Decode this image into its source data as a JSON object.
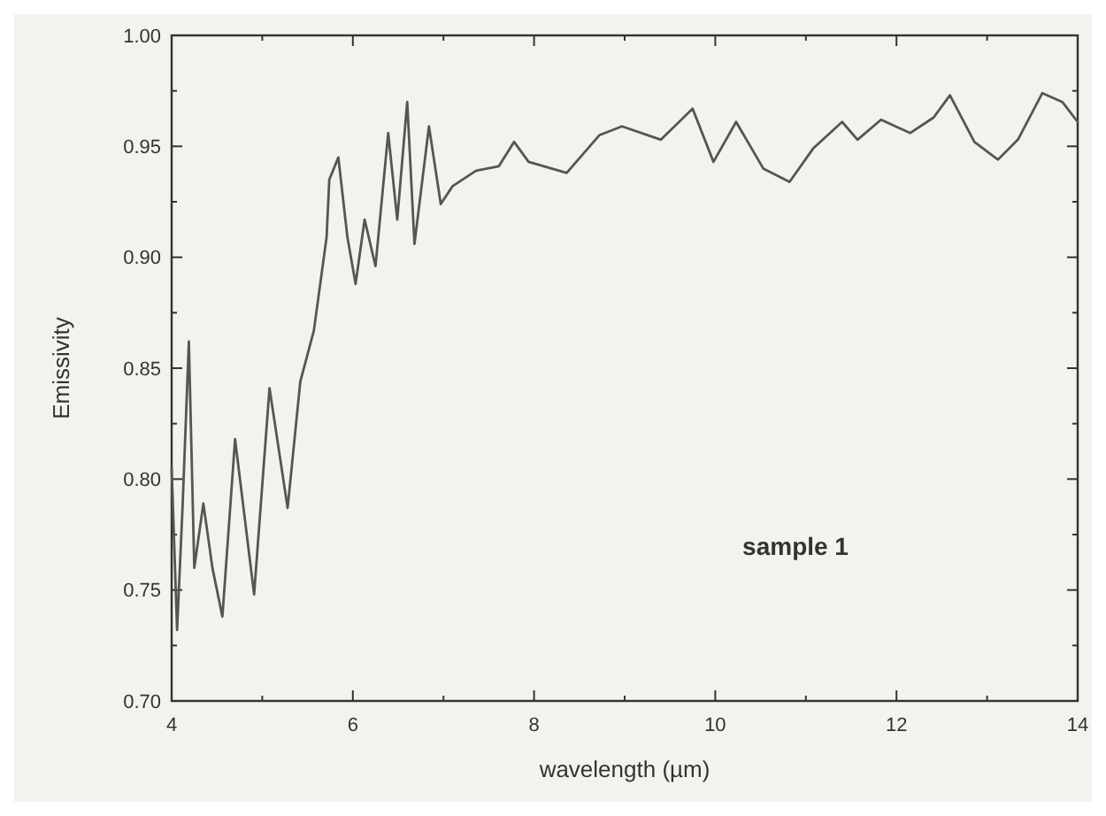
{
  "chart_data": {
    "type": "line",
    "xlabel": "wavelength (µm)",
    "ylabel": "Emissivity",
    "annotations": [
      "sample 1"
    ],
    "xlim": [
      4,
      14
    ],
    "ylim": [
      0.7,
      1.0
    ],
    "xticks": [
      4,
      6,
      8,
      10,
      12,
      14
    ],
    "yticks": [
      {
        "value": 0.7,
        "label": "0.70"
      },
      {
        "value": 0.75,
        "label": "0.75"
      },
      {
        "value": 0.8,
        "label": "0.80"
      },
      {
        "value": 0.85,
        "label": "0.85"
      },
      {
        "value": 0.9,
        "label": "0.90"
      },
      {
        "value": 0.95,
        "label": "0.95"
      },
      {
        "value": 1.0,
        "label": "1.00"
      }
    ],
    "marker": "none",
    "line_style": "solid",
    "series": [
      {
        "color": "#555555",
        "x": [
          4.0,
          4.06,
          4.12,
          4.19,
          4.25,
          4.35,
          4.45,
          4.56,
          4.7,
          4.91,
          5.08,
          5.28,
          5.42,
          5.57,
          5.71,
          5.74,
          5.84,
          5.94,
          6.03,
          6.13,
          6.25,
          6.39,
          6.49,
          6.6,
          6.68,
          6.84,
          6.97,
          7.1,
          7.36,
          7.61,
          7.78,
          7.94,
          8.36,
          8.72,
          8.97,
          9.4,
          9.75,
          9.98,
          10.23,
          10.53,
          10.82,
          11.08,
          11.4,
          11.57,
          11.83,
          12.15,
          12.41,
          12.59,
          12.86,
          13.12,
          13.34,
          13.61,
          13.83,
          14.0
        ],
        "values": [
          0.805,
          0.732,
          0.787,
          0.862,
          0.76,
          0.789,
          0.76,
          0.738,
          0.818,
          0.748,
          0.841,
          0.787,
          0.844,
          0.867,
          0.909,
          0.935,
          0.945,
          0.909,
          0.888,
          0.917,
          0.896,
          0.956,
          0.917,
          0.97,
          0.906,
          0.959,
          0.924,
          0.932,
          0.939,
          0.941,
          0.952,
          0.943,
          0.938,
          0.955,
          0.959,
          0.953,
          0.967,
          0.943,
          0.961,
          0.94,
          0.934,
          0.949,
          0.961,
          0.953,
          0.962,
          0.956,
          0.963,
          0.973,
          0.952,
          0.944,
          0.953,
          0.974,
          0.97,
          0.961
        ]
      }
    ]
  }
}
